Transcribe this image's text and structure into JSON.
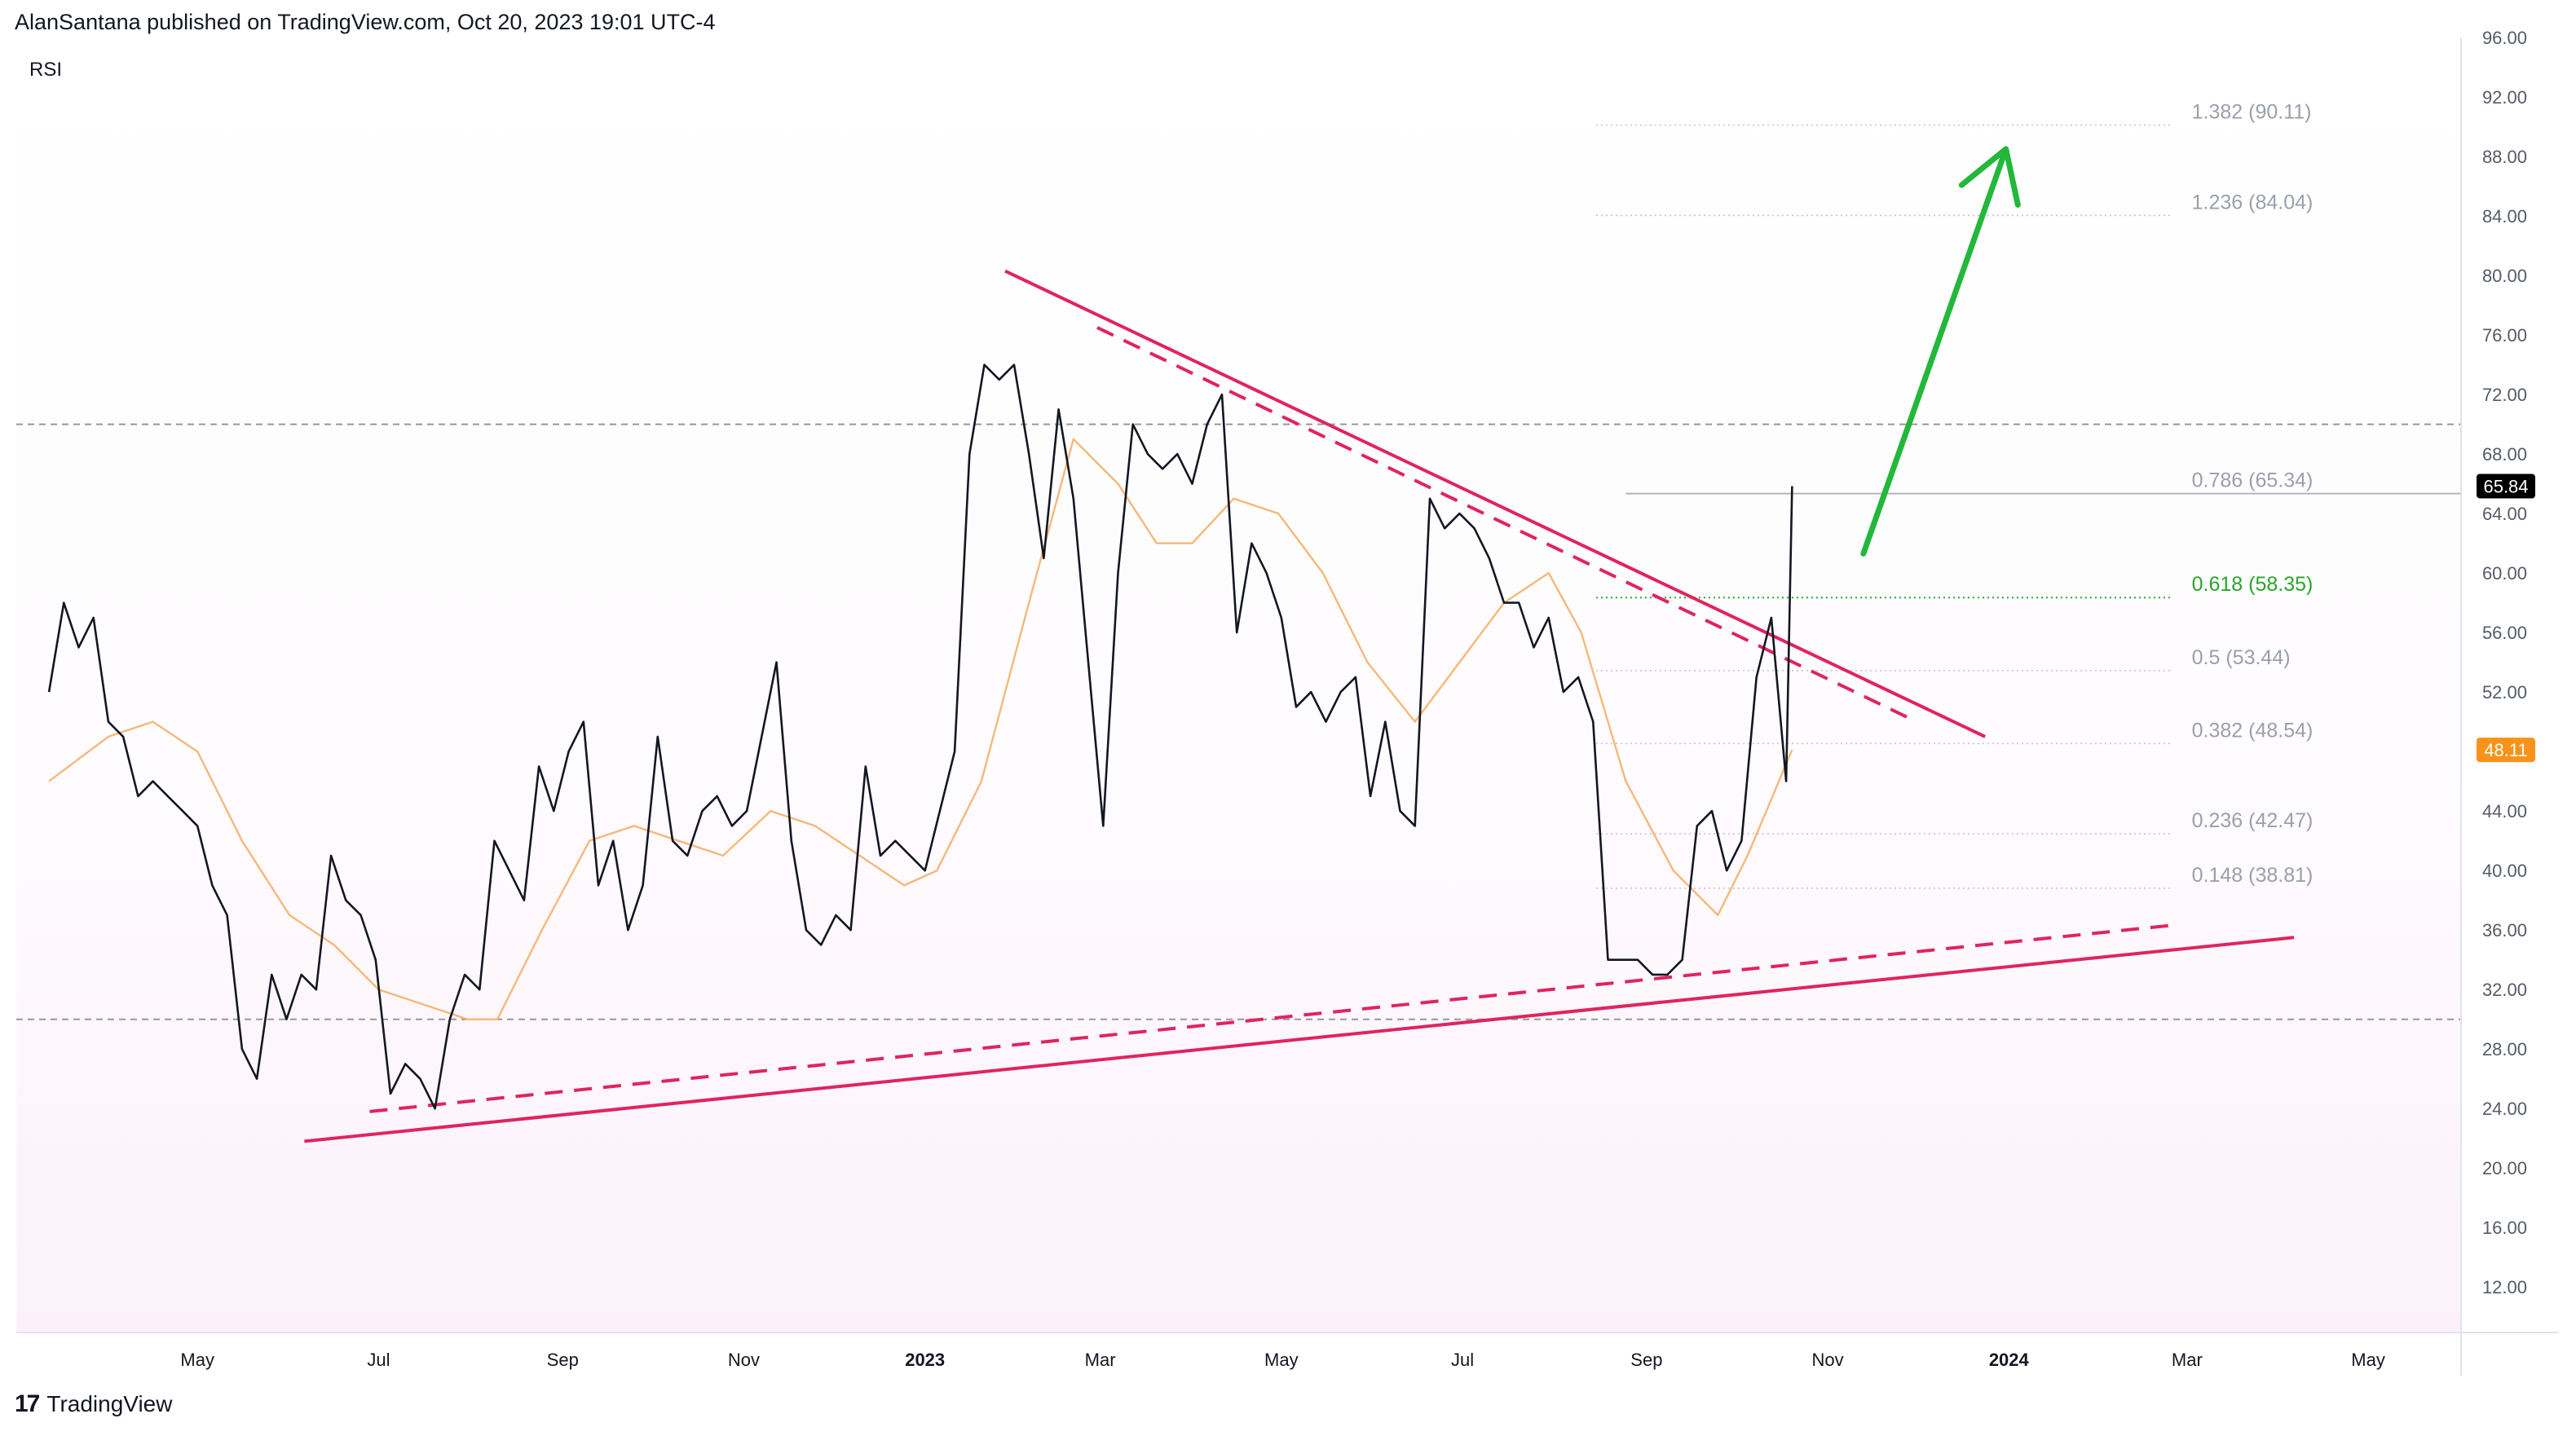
{
  "header": {
    "attribution": "AlanSantana published on TradingView.com, Oct 20, 2023 19:01 UTC-4"
  },
  "footer": {
    "brand": "TradingView",
    "logo_glyph": "17"
  },
  "indicator_label": "RSI",
  "colors": {
    "rsi_line": "#131722",
    "rsi_ma": "#f5b87a",
    "trendline": "#e0245e",
    "arrow": "#22b83a",
    "fib_gray": "#9aa0aa",
    "fib_green": "#2aa52a",
    "rsi_badge": "#000000",
    "ma_badge": "#f7931a"
  },
  "chart_data": {
    "type": "line",
    "x_axis": {
      "ticks": [
        "May",
        "Jul",
        "Sep",
        "Nov",
        "2023",
        "Mar",
        "May",
        "Jul",
        "Sep",
        "Nov",
        "2024",
        "Mar",
        "May"
      ],
      "bold_ticks": [
        "2023",
        "2024"
      ],
      "range": [
        "2022-03",
        "2024-06"
      ]
    },
    "y_axis": {
      "ticks": [
        "96.00",
        "92.00",
        "88.00",
        "84.00",
        "80.00",
        "76.00",
        "72.00",
        "68.00",
        "64.00",
        "60.00",
        "56.00",
        "52.00",
        "48.00",
        "44.00",
        "40.00",
        "36.00",
        "32.00",
        "28.00",
        "24.00",
        "20.00",
        "16.00",
        "12.00"
      ],
      "range": [
        9,
        96
      ],
      "position": "right"
    },
    "reference_levels": [
      70,
      30
    ],
    "current_values": {
      "rsi": "65.84",
      "rsi_ma": "48.11"
    },
    "fibonacci_levels": [
      {
        "label": "1.382 (90.11)",
        "value": 90.11,
        "highlight": false
      },
      {
        "label": "1.236 (84.04)",
        "value": 84.04,
        "highlight": false
      },
      {
        "label": "0.786 (65.34)",
        "value": 65.34,
        "highlight": false
      },
      {
        "label": "0.618 (58.35)",
        "value": 58.35,
        "highlight": true
      },
      {
        "label": "0.5 (53.44)",
        "value": 53.44,
        "highlight": false
      },
      {
        "label": "0.382 (48.54)",
        "value": 48.54,
        "highlight": false
      },
      {
        "label": "0.236 (42.47)",
        "value": 42.47,
        "highlight": false
      },
      {
        "label": "0.148 (38.81)",
        "value": 38.81,
        "highlight": false
      }
    ],
    "series": [
      {
        "key": "rsi",
        "points": [
          [
            "2022-03-12",
            52
          ],
          [
            "2022-03-17",
            58
          ],
          [
            "2022-03-22",
            55
          ],
          [
            "2022-03-27",
            57
          ],
          [
            "2022-04-01",
            50
          ],
          [
            "2022-04-06",
            49
          ],
          [
            "2022-04-11",
            45
          ],
          [
            "2022-04-16",
            46
          ],
          [
            "2022-04-21",
            45
          ],
          [
            "2022-04-26",
            44
          ],
          [
            "2022-05-01",
            43
          ],
          [
            "2022-05-06",
            39
          ],
          [
            "2022-05-11",
            37
          ],
          [
            "2022-05-16",
            28
          ],
          [
            "2022-05-21",
            26
          ],
          [
            "2022-05-26",
            33
          ],
          [
            "2022-05-31",
            30
          ],
          [
            "2022-06-05",
            33
          ],
          [
            "2022-06-10",
            32
          ],
          [
            "2022-06-15",
            41
          ],
          [
            "2022-06-20",
            38
          ],
          [
            "2022-06-25",
            37
          ],
          [
            "2022-06-30",
            34
          ],
          [
            "2022-07-05",
            25
          ],
          [
            "2022-07-10",
            27
          ],
          [
            "2022-07-15",
            26
          ],
          [
            "2022-07-20",
            24
          ],
          [
            "2022-07-25",
            30
          ],
          [
            "2022-07-30",
            33
          ],
          [
            "2022-08-04",
            32
          ],
          [
            "2022-08-09",
            42
          ],
          [
            "2022-08-14",
            40
          ],
          [
            "2022-08-19",
            38
          ],
          [
            "2022-08-24",
            47
          ],
          [
            "2022-08-29",
            44
          ],
          [
            "2022-09-03",
            48
          ],
          [
            "2022-09-08",
            50
          ],
          [
            "2022-09-13",
            39
          ],
          [
            "2022-09-18",
            42
          ],
          [
            "2022-09-23",
            36
          ],
          [
            "2022-09-28",
            39
          ],
          [
            "2022-10-03",
            49
          ],
          [
            "2022-10-08",
            42
          ],
          [
            "2022-10-13",
            41
          ],
          [
            "2022-10-18",
            44
          ],
          [
            "2022-10-23",
            45
          ],
          [
            "2022-10-28",
            43
          ],
          [
            "2022-11-02",
            44
          ],
          [
            "2022-11-07",
            49
          ],
          [
            "2022-11-12",
            54
          ],
          [
            "2022-11-17",
            42
          ],
          [
            "2022-11-22",
            36
          ],
          [
            "2022-11-27",
            35
          ],
          [
            "2022-12-02",
            37
          ],
          [
            "2022-12-07",
            36
          ],
          [
            "2022-12-12",
            47
          ],
          [
            "2022-12-17",
            41
          ],
          [
            "2022-12-22",
            42
          ],
          [
            "2022-12-27",
            41
          ],
          [
            "2023-01-01",
            40
          ],
          [
            "2023-01-06",
            44
          ],
          [
            "2023-01-11",
            48
          ],
          [
            "2023-01-16",
            68
          ],
          [
            "2023-01-21",
            74
          ],
          [
            "2023-01-26",
            73
          ],
          [
            "2023-01-31",
            74
          ],
          [
            "2023-02-05",
            68
          ],
          [
            "2023-02-10",
            61
          ],
          [
            "2023-02-15",
            71
          ],
          [
            "2023-02-20",
            65
          ],
          [
            "2023-02-25",
            54
          ],
          [
            "2023-03-02",
            43
          ],
          [
            "2023-03-07",
            60
          ],
          [
            "2023-03-12",
            70
          ],
          [
            "2023-03-17",
            68
          ],
          [
            "2023-03-22",
            67
          ],
          [
            "2023-03-27",
            68
          ],
          [
            "2023-04-01",
            66
          ],
          [
            "2023-04-06",
            70
          ],
          [
            "2023-04-11",
            72
          ],
          [
            "2023-04-16",
            56
          ],
          [
            "2023-04-21",
            62
          ],
          [
            "2023-04-26",
            60
          ],
          [
            "2023-05-01",
            57
          ],
          [
            "2023-05-06",
            51
          ],
          [
            "2023-05-11",
            52
          ],
          [
            "2023-05-16",
            50
          ],
          [
            "2023-05-21",
            52
          ],
          [
            "2023-05-26",
            53
          ],
          [
            "2023-05-31",
            45
          ],
          [
            "2023-06-05",
            50
          ],
          [
            "2023-06-10",
            44
          ],
          [
            "2023-06-15",
            43
          ],
          [
            "2023-06-20",
            65
          ],
          [
            "2023-06-25",
            63
          ],
          [
            "2023-06-30",
            64
          ],
          [
            "2023-07-05",
            63
          ],
          [
            "2023-07-10",
            61
          ],
          [
            "2023-07-15",
            58
          ],
          [
            "2023-07-20",
            58
          ],
          [
            "2023-07-25",
            55
          ],
          [
            "2023-07-30",
            57
          ],
          [
            "2023-08-04",
            52
          ],
          [
            "2023-08-09",
            53
          ],
          [
            "2023-08-14",
            50
          ],
          [
            "2023-08-19",
            34
          ],
          [
            "2023-08-24",
            34
          ],
          [
            "2023-08-29",
            34
          ],
          [
            "2023-09-03",
            33
          ],
          [
            "2023-09-08",
            33
          ],
          [
            "2023-09-13",
            34
          ],
          [
            "2023-09-18",
            43
          ],
          [
            "2023-09-23",
            44
          ],
          [
            "2023-09-28",
            40
          ],
          [
            "2023-10-03",
            42
          ],
          [
            "2023-10-08",
            53
          ],
          [
            "2023-10-13",
            57
          ],
          [
            "2023-10-18",
            46
          ],
          [
            "2023-10-20",
            65.84
          ]
        ]
      },
      {
        "key": "rsi_ma",
        "points": [
          [
            "2022-03-12",
            46
          ],
          [
            "2022-04-01",
            49
          ],
          [
            "2022-04-16",
            50
          ],
          [
            "2022-05-01",
            48
          ],
          [
            "2022-05-16",
            42
          ],
          [
            "2022-06-01",
            37
          ],
          [
            "2022-06-16",
            35
          ],
          [
            "2022-07-01",
            32
          ],
          [
            "2022-07-16",
            31
          ],
          [
            "2022-07-31",
            30
          ],
          [
            "2022-08-10",
            30
          ],
          [
            "2022-08-25",
            36
          ],
          [
            "2022-09-10",
            42
          ],
          [
            "2022-09-25",
            43
          ],
          [
            "2022-10-10",
            42
          ],
          [
            "2022-10-25",
            41
          ],
          [
            "2022-11-10",
            44
          ],
          [
            "2022-11-25",
            43
          ],
          [
            "2022-12-10",
            41
          ],
          [
            "2022-12-25",
            39
          ],
          [
            "2023-01-05",
            40
          ],
          [
            "2023-01-20",
            46
          ],
          [
            "2023-02-05",
            58
          ],
          [
            "2023-02-20",
            69
          ],
          [
            "2023-03-07",
            66
          ],
          [
            "2023-03-20",
            62
          ],
          [
            "2023-04-01",
            62
          ],
          [
            "2023-04-15",
            65
          ],
          [
            "2023-04-30",
            64
          ],
          [
            "2023-05-15",
            60
          ],
          [
            "2023-05-30",
            54
          ],
          [
            "2023-06-15",
            50
          ],
          [
            "2023-06-30",
            54
          ],
          [
            "2023-07-15",
            58
          ],
          [
            "2023-07-30",
            60
          ],
          [
            "2023-08-10",
            56
          ],
          [
            "2023-08-25",
            46
          ],
          [
            "2023-09-10",
            40
          ],
          [
            "2023-09-25",
            37
          ],
          [
            "2023-10-05",
            41
          ],
          [
            "2023-10-20",
            48.11
          ]
        ]
      }
    ],
    "trendlines": [
      {
        "style": "solid",
        "from": [
          "2023-01-28",
          80.3
        ],
        "to": [
          "2023-12-24",
          49.0
        ]
      },
      {
        "style": "dashed",
        "from": [
          "2023-02-28",
          76.5
        ],
        "to": [
          "2023-12-01",
          50.0
        ]
      },
      {
        "style": "dashed",
        "from": [
          "2022-06-28",
          23.8
        ],
        "to": [
          "2024-02-24",
          36.3
        ]
      },
      {
        "style": "solid",
        "from": [
          "2022-06-06",
          21.8
        ],
        "to": [
          "2024-04-06",
          35.5
        ]
      }
    ],
    "projection_arrow": {
      "from": [
        "2023-11-13",
        61.3
      ],
      "to": [
        "2023-12-31",
        88.5
      ]
    },
    "grid": false,
    "legend": "none"
  }
}
